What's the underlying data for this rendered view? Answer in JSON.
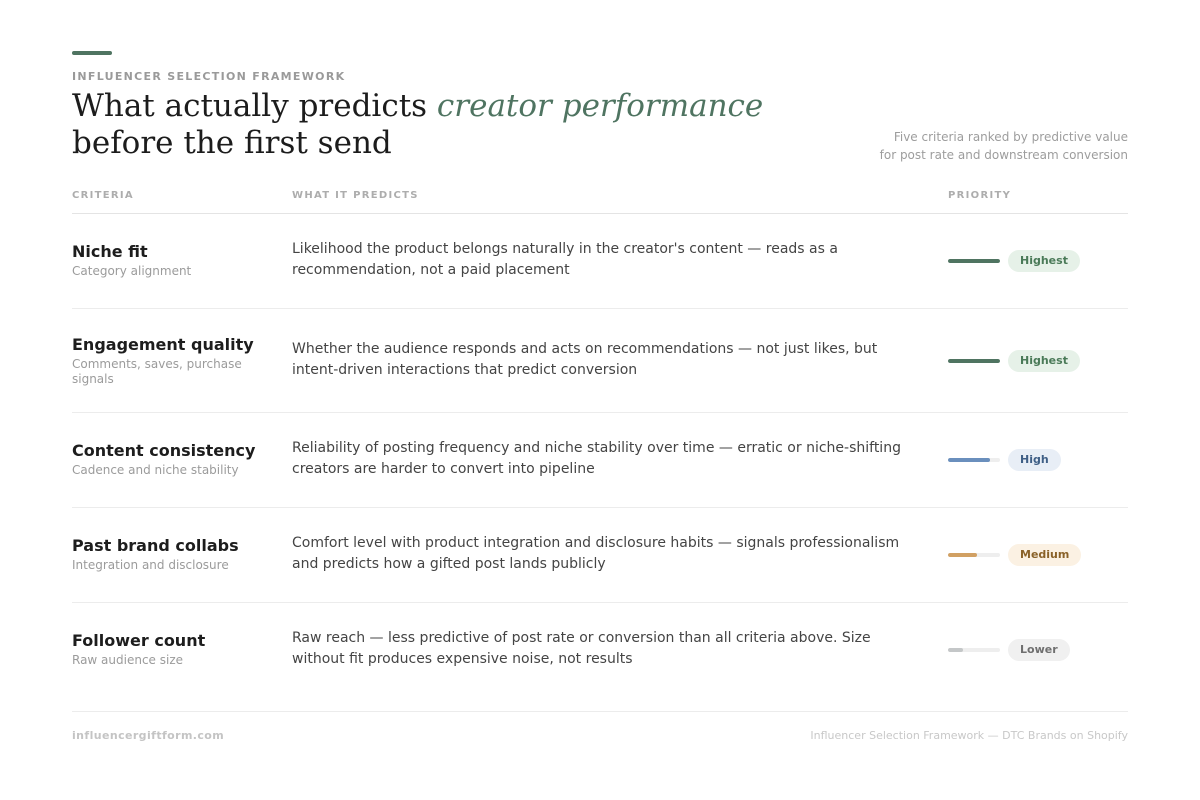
{
  "header": {
    "eyebrow": "INFLUENCER SELECTION FRAMEWORK",
    "title_part1": "What actually predicts ",
    "title_accent": "creator performance",
    "title_part2": "before the first send",
    "subtitle_line1": "Five criteria ranked by predictive value",
    "subtitle_line2": "for post rate and downstream conversion"
  },
  "columns": {
    "criteria": "CRITERIA",
    "predicts": "WHAT IT PREDICTS",
    "priority": "PRIORITY"
  },
  "rows": [
    {
      "name": "Niche fit",
      "sub": "Category alignment",
      "description": "Likelihood the product belongs naturally in the creator's content — reads as a recommendation, not a paid placement",
      "priority": "Highest",
      "level": 1.0,
      "color": "#4f7461",
      "badge_bg": "#e6f1e8",
      "badge_fg": "#4a7a58"
    },
    {
      "name": "Engagement quality",
      "sub": "Comments, saves, purchase signals",
      "description": "Whether the audience responds and acts on recommendations — not just likes, but intent-driven interactions that predict conversion",
      "priority": "Highest",
      "level": 1.0,
      "color": "#4f7461",
      "badge_bg": "#e6f1e8",
      "badge_fg": "#4a7a58"
    },
    {
      "name": "Content consistency",
      "sub": "Cadence and niche stability",
      "description": "Reliability of posting frequency and niche stability over time — erratic or niche-shifting creators are harder to convert into pipeline",
      "priority": "High",
      "level": 0.8,
      "color": "#6a8fbd",
      "badge_bg": "#e8eef6",
      "badge_fg": "#3f5f86"
    },
    {
      "name": "Past brand collabs",
      "sub": "Integration and disclosure",
      "description": "Comfort level with product integration and disclosure habits — signals professionalism and predicts how a gifted post lands publicly",
      "priority": "Medium",
      "level": 0.55,
      "color": "#d1a063",
      "badge_bg": "#fbf1e3",
      "badge_fg": "#8a6229"
    },
    {
      "name": "Follower count",
      "sub": "Raw audience size",
      "description": "Raw reach — less predictive of post rate or conversion than all criteria above. Size without fit produces expensive noise, not results",
      "priority": "Lower",
      "level": 0.28,
      "color": "#c4c7c8",
      "badge_bg": "#f0f0f0",
      "badge_fg": "#6f6f6f"
    }
  ],
  "footer": {
    "left": "influencergiftform.com",
    "right": "Influencer Selection Framework — DTC Brands on Shopify"
  }
}
